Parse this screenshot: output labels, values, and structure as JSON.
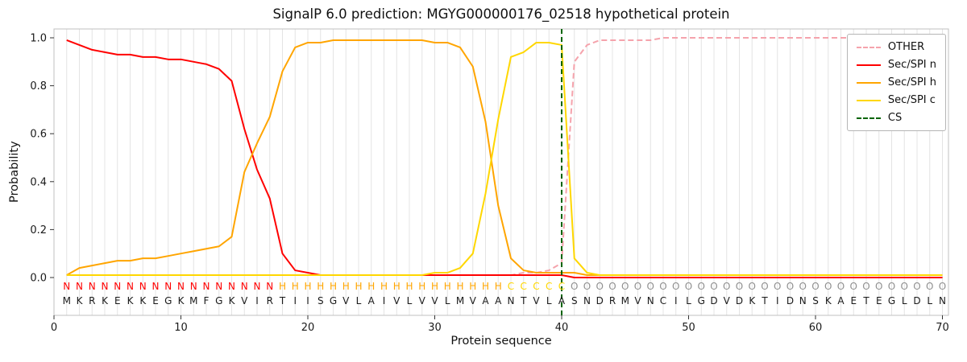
{
  "chart_data": {
    "type": "line",
    "title": "SignalP 6.0 prediction: MGYG000000176_02518 hypothetical protein",
    "xlabel": "Protein sequence",
    "ylabel": "Probability",
    "xlim": [
      0,
      70.5
    ],
    "ylim": [
      0,
      1.0
    ],
    "xticks": [
      0,
      10,
      20,
      30,
      40,
      50,
      60,
      70
    ],
    "yticks": [
      0.0,
      0.2,
      0.4,
      0.6,
      0.8,
      1.0
    ],
    "grid": "vertical-line-per-residue",
    "legend_position": "upper right",
    "background": "#ffffff",
    "colors": {
      "grid": "#e4e4e4",
      "frame": "#c0c0c0",
      "tick": "#333333",
      "text": "#1a1a1a"
    },
    "x": [
      1,
      2,
      3,
      4,
      5,
      6,
      7,
      8,
      9,
      10,
      11,
      12,
      13,
      14,
      15,
      16,
      17,
      18,
      19,
      20,
      21,
      22,
      23,
      24,
      25,
      26,
      27,
      28,
      29,
      30,
      31,
      32,
      33,
      34,
      35,
      36,
      37,
      38,
      39,
      40,
      41,
      42,
      43,
      44,
      45,
      46,
      47,
      48,
      49,
      50,
      51,
      52,
      53,
      54,
      55,
      56,
      57,
      58,
      59,
      60,
      61,
      62,
      63,
      64,
      65,
      66,
      67,
      68,
      69,
      70
    ],
    "series": [
      {
        "name": "OTHER",
        "key": "other",
        "color": "#f5a3ac",
        "dash": true,
        "values": [
          0.01,
          0.01,
          0.01,
          0.01,
          0.01,
          0.01,
          0.01,
          0.01,
          0.01,
          0.01,
          0.01,
          0.01,
          0.01,
          0.01,
          0.01,
          0.01,
          0.01,
          0.01,
          0.01,
          0.01,
          0.01,
          0.01,
          0.01,
          0.01,
          0.01,
          0.01,
          0.01,
          0.01,
          0.01,
          0.01,
          0.01,
          0.01,
          0.01,
          0.01,
          0.01,
          0.01,
          0.02,
          0.02,
          0.03,
          0.06,
          0.9,
          0.97,
          0.99,
          0.99,
          0.99,
          0.99,
          0.99,
          1.0,
          1.0,
          1.0,
          1.0,
          1.0,
          1.0,
          1.0,
          1.0,
          1.0,
          1.0,
          1.0,
          1.0,
          1.0,
          1.0,
          1.0,
          1.0,
          1.0,
          1.0,
          1.0,
          1.0,
          1.0,
          1.0,
          1.0
        ]
      },
      {
        "name": "Sec/SPI n",
        "key": "sec-spi-n",
        "color": "#ff0000",
        "dash": false,
        "values": [
          0.99,
          0.97,
          0.95,
          0.94,
          0.93,
          0.93,
          0.92,
          0.92,
          0.91,
          0.91,
          0.9,
          0.89,
          0.87,
          0.82,
          0.62,
          0.45,
          0.33,
          0.1,
          0.03,
          0.02,
          0.01,
          0.01,
          0.01,
          0.01,
          0.01,
          0.01,
          0.01,
          0.01,
          0.01,
          0.01,
          0.01,
          0.01,
          0.01,
          0.01,
          0.01,
          0.01,
          0.01,
          0.01,
          0.01,
          0.01,
          0.0,
          0.0,
          0.0,
          0.0,
          0.0,
          0.0,
          0.0,
          0.0,
          0.0,
          0.0,
          0.0,
          0.0,
          0.0,
          0.0,
          0.0,
          0.0,
          0.0,
          0.0,
          0.0,
          0.0,
          0.0,
          0.0,
          0.0,
          0.0,
          0.0,
          0.0,
          0.0,
          0.0,
          0.0,
          0.0
        ]
      },
      {
        "name": "Sec/SPI h",
        "key": "sec-spi-h",
        "color": "#ffa500",
        "dash": false,
        "values": [
          0.01,
          0.04,
          0.05,
          0.06,
          0.07,
          0.07,
          0.08,
          0.08,
          0.09,
          0.1,
          0.11,
          0.12,
          0.13,
          0.17,
          0.44,
          0.56,
          0.67,
          0.86,
          0.96,
          0.98,
          0.98,
          0.99,
          0.99,
          0.99,
          0.99,
          0.99,
          0.99,
          0.99,
          0.99,
          0.98,
          0.98,
          0.96,
          0.88,
          0.65,
          0.3,
          0.08,
          0.03,
          0.02,
          0.02,
          0.02,
          0.02,
          0.01,
          0.01,
          0.01,
          0.01,
          0.01,
          0.01,
          0.01,
          0.01,
          0.01,
          0.01,
          0.01,
          0.01,
          0.01,
          0.01,
          0.01,
          0.01,
          0.01,
          0.01,
          0.01,
          0.01,
          0.01,
          0.01,
          0.01,
          0.01,
          0.01,
          0.01,
          0.01,
          0.01,
          0.01
        ]
      },
      {
        "name": "Sec/SPI c",
        "key": "sec-spi-c",
        "color": "#ffd700",
        "dash": false,
        "values": [
          0.01,
          0.01,
          0.01,
          0.01,
          0.01,
          0.01,
          0.01,
          0.01,
          0.01,
          0.01,
          0.01,
          0.01,
          0.01,
          0.01,
          0.01,
          0.01,
          0.01,
          0.01,
          0.01,
          0.01,
          0.01,
          0.01,
          0.01,
          0.01,
          0.01,
          0.01,
          0.01,
          0.01,
          0.01,
          0.02,
          0.02,
          0.04,
          0.1,
          0.35,
          0.66,
          0.92,
          0.94,
          0.98,
          0.98,
          0.97,
          0.08,
          0.02,
          0.01,
          0.01,
          0.01,
          0.01,
          0.01,
          0.01,
          0.01,
          0.01,
          0.01,
          0.01,
          0.01,
          0.01,
          0.01,
          0.01,
          0.01,
          0.01,
          0.01,
          0.01,
          0.01,
          0.01,
          0.01,
          0.01,
          0.01,
          0.01,
          0.01,
          0.01,
          0.01,
          0.01
        ]
      }
    ],
    "cs": {
      "label": "CS",
      "position": 40,
      "color": "#006400",
      "dash": true
    },
    "legend": [
      {
        "label": "OTHER",
        "key": "other",
        "color": "#f5a3ac",
        "dash": true
      },
      {
        "label": "Sec/SPI n",
        "key": "sec-spi-n",
        "color": "#ff0000",
        "dash": false
      },
      {
        "label": "Sec/SPI h",
        "key": "sec-spi-h",
        "color": "#ffa500",
        "dash": false
      },
      {
        "label": "Sec/SPI c",
        "key": "sec-spi-c",
        "color": "#ffd700",
        "dash": false
      },
      {
        "label": "CS",
        "key": "cs",
        "color": "#006400",
        "dash": true
      }
    ],
    "sequence": "MKRKEKKEGKMFGKVIRTIISGVLAIVLVVLMVAANTVLASNDRMVNCILGDVDKTIDNSKAETEGLDLN",
    "region_labels": "NNNNNNNNNNNNNNNNNHHHHHHHHHHHHHHHHHHCCCCCOOOOOOOOOOOOOOOOOOOOOOOOOOOOOO",
    "region_colors": {
      "N": "#ff0000",
      "H": "#ffa500",
      "C": "#ffd700",
      "O": "#909090"
    },
    "sequence_color": "#1a1a1a"
  }
}
